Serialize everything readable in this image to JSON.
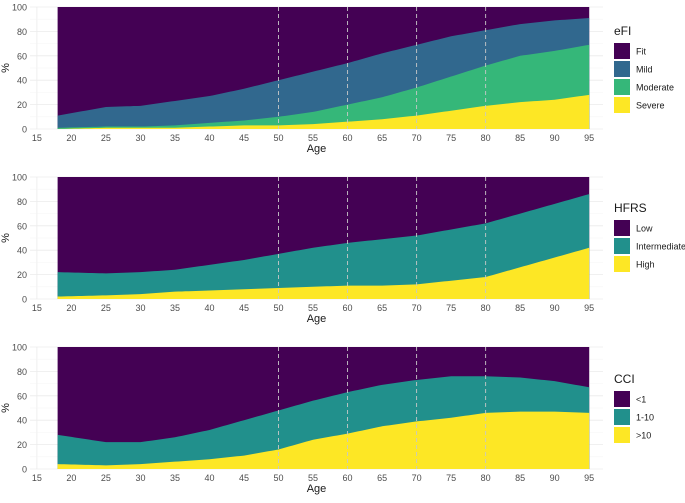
{
  "chart_data": [
    {
      "type": "area",
      "stacking": "percent",
      "title": "",
      "xlabel": "Age",
      "ylabel": "%",
      "xlim": [
        14,
        97
      ],
      "ylim": [
        0,
        100
      ],
      "x_ticks": [
        15,
        20,
        25,
        30,
        35,
        40,
        45,
        50,
        55,
        60,
        65,
        70,
        75,
        80,
        85,
        90,
        95
      ],
      "y_ticks": [
        0,
        20,
        40,
        60,
        80,
        100
      ],
      "reference_lines_x": [
        50,
        60,
        70,
        80
      ],
      "x": [
        18,
        25,
        30,
        35,
        40,
        45,
        50,
        55,
        60,
        65,
        70,
        75,
        80,
        85,
        90,
        95
      ],
      "legend_title": "eFI",
      "series": [
        {
          "name": "Fit",
          "color": "#440154",
          "values": [
            89,
            82,
            81,
            77,
            73,
            67,
            60,
            53,
            46,
            38,
            31,
            24,
            19,
            14,
            11,
            9
          ]
        },
        {
          "name": "Mild",
          "color": "#31688E",
          "values": [
            10,
            16,
            17,
            20,
            22,
            26,
            30,
            33,
            34,
            36,
            35,
            33,
            29,
            26,
            25,
            22
          ]
        },
        {
          "name": "Moderate",
          "color": "#35B779",
          "values": [
            1,
            1,
            1,
            2,
            3,
            4,
            7,
            10,
            14,
            18,
            23,
            28,
            33,
            38,
            40,
            41
          ]
        },
        {
          "name": "Severe",
          "color": "#FDE725",
          "values": [
            0,
            1,
            1,
            1,
            2,
            3,
            3,
            4,
            6,
            8,
            11,
            15,
            19,
            22,
            24,
            28
          ]
        }
      ]
    },
    {
      "type": "area",
      "stacking": "percent",
      "title": "",
      "xlabel": "Age",
      "ylabel": "%",
      "xlim": [
        14,
        97
      ],
      "ylim": [
        0,
        100
      ],
      "x_ticks": [
        15,
        20,
        25,
        30,
        35,
        40,
        45,
        50,
        55,
        60,
        65,
        70,
        75,
        80,
        85,
        90,
        95
      ],
      "y_ticks": [
        0,
        20,
        40,
        60,
        80,
        100
      ],
      "reference_lines_x": [
        50,
        60,
        70,
        80
      ],
      "x": [
        18,
        25,
        30,
        35,
        40,
        45,
        50,
        55,
        60,
        65,
        70,
        75,
        80,
        85,
        90,
        95
      ],
      "legend_title": "HFRS",
      "series": [
        {
          "name": "Low",
          "color": "#440154",
          "values": [
            78,
            79,
            78,
            76,
            72,
            68,
            63,
            58,
            54,
            51,
            48,
            43,
            38,
            30,
            22,
            14
          ]
        },
        {
          "name": "Intermediate",
          "color": "#21908C",
          "values": [
            20,
            18,
            18,
            18,
            21,
            24,
            28,
            32,
            35,
            38,
            40,
            42,
            44,
            44,
            44,
            44
          ]
        },
        {
          "name": "High",
          "color": "#FDE725",
          "values": [
            2,
            3,
            4,
            6,
            7,
            8,
            9,
            10,
            11,
            11,
            12,
            15,
            18,
            26,
            34,
            42
          ]
        }
      ]
    },
    {
      "type": "area",
      "stacking": "percent",
      "title": "",
      "xlabel": "Age",
      "ylabel": "%",
      "xlim": [
        14,
        97
      ],
      "ylim": [
        0,
        100
      ],
      "x_ticks": [
        15,
        20,
        25,
        30,
        35,
        40,
        45,
        50,
        55,
        60,
        65,
        70,
        75,
        80,
        85,
        90,
        95
      ],
      "y_ticks": [
        0,
        20,
        40,
        60,
        80,
        100
      ],
      "reference_lines_x": [
        50,
        60,
        70,
        80
      ],
      "x": [
        18,
        25,
        30,
        35,
        40,
        45,
        50,
        55,
        60,
        65,
        70,
        75,
        80,
        85,
        90,
        95
      ],
      "legend_title": "CCI",
      "series": [
        {
          "name": "<1",
          "color": "#440154",
          "values": [
            72,
            78,
            78,
            74,
            68,
            60,
            52,
            44,
            37,
            31,
            27,
            24,
            24,
            25,
            28,
            33
          ]
        },
        {
          "name": "1-10",
          "color": "#21908C",
          "values": [
            24,
            19,
            18,
            20,
            24,
            29,
            32,
            32,
            34,
            34,
            34,
            34,
            30,
            28,
            25,
            21
          ]
        },
        {
          "name": ">10",
          "color": "#FDE725",
          "values": [
            4,
            3,
            4,
            6,
            8,
            11,
            16,
            24,
            29,
            35,
            39,
            42,
            46,
            47,
            47,
            46
          ]
        }
      ]
    }
  ]
}
